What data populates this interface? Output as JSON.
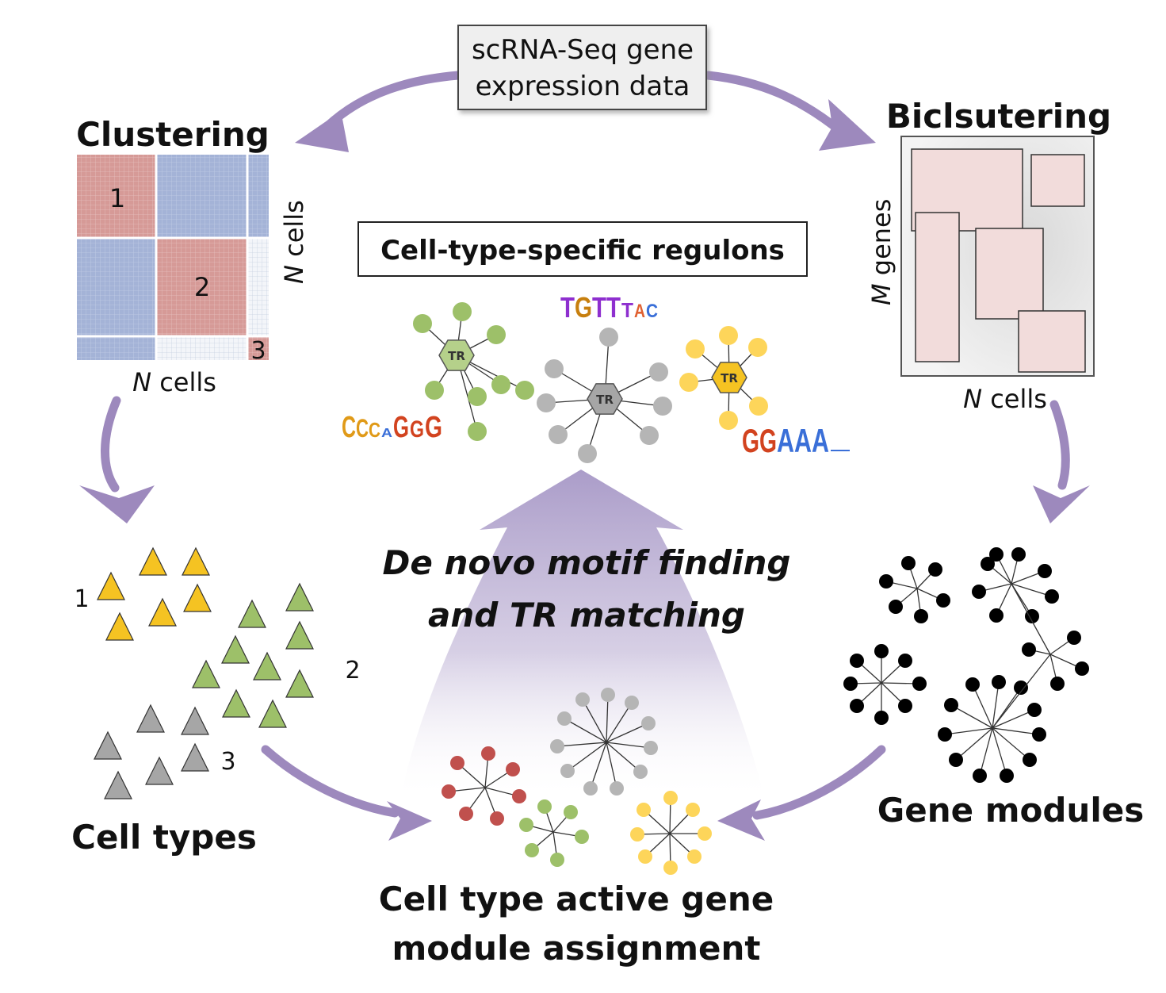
{
  "source_box": {
    "line1": "scRNA-Seq gene",
    "line2": "expression data"
  },
  "clustering": {
    "title": "Clustering",
    "block_labels": [
      "1",
      "2",
      "3"
    ],
    "y_axis": {
      "italic": "N",
      "rest": " cells"
    },
    "x_axis": {
      "italic": "N",
      "rest": " cells"
    }
  },
  "biclustering": {
    "title": "Biclsutering",
    "y_axis": {
      "italic": "M",
      "rest": " genes"
    },
    "x_axis": {
      "italic": "N",
      "rest": " cells"
    }
  },
  "regulons": {
    "title": "Cell-type-specific regulons",
    "hub_label": "TR",
    "motifs": {
      "top": [
        "T",
        "G",
        "T",
        "T",
        "T",
        "A",
        "C"
      ],
      "left": [
        "C",
        "C",
        "C",
        "A",
        "G",
        "G",
        "G"
      ],
      "right": [
        "G",
        "G",
        "A",
        "A",
        "A"
      ]
    }
  },
  "center_arrow": {
    "line1": "De novo motif finding",
    "line2": "and TR matching"
  },
  "cell_types": {
    "title": "Cell types",
    "group_labels": [
      "1",
      "2",
      "3"
    ]
  },
  "gene_modules": {
    "title": "Gene modules"
  },
  "assignment": {
    "line1": "Cell type active gene",
    "line2": "module assignment"
  },
  "colors": {
    "arrow": "#9d89bd",
    "cluster_red": "#d69a97",
    "cluster_blue": "#a4b3d7",
    "bicluster_fill": "#f2dcdb",
    "yellow": "#f5c322",
    "green": "#9dc069",
    "gray": "#b5b5b5",
    "red": "#c0504d",
    "black": "#000000"
  }
}
